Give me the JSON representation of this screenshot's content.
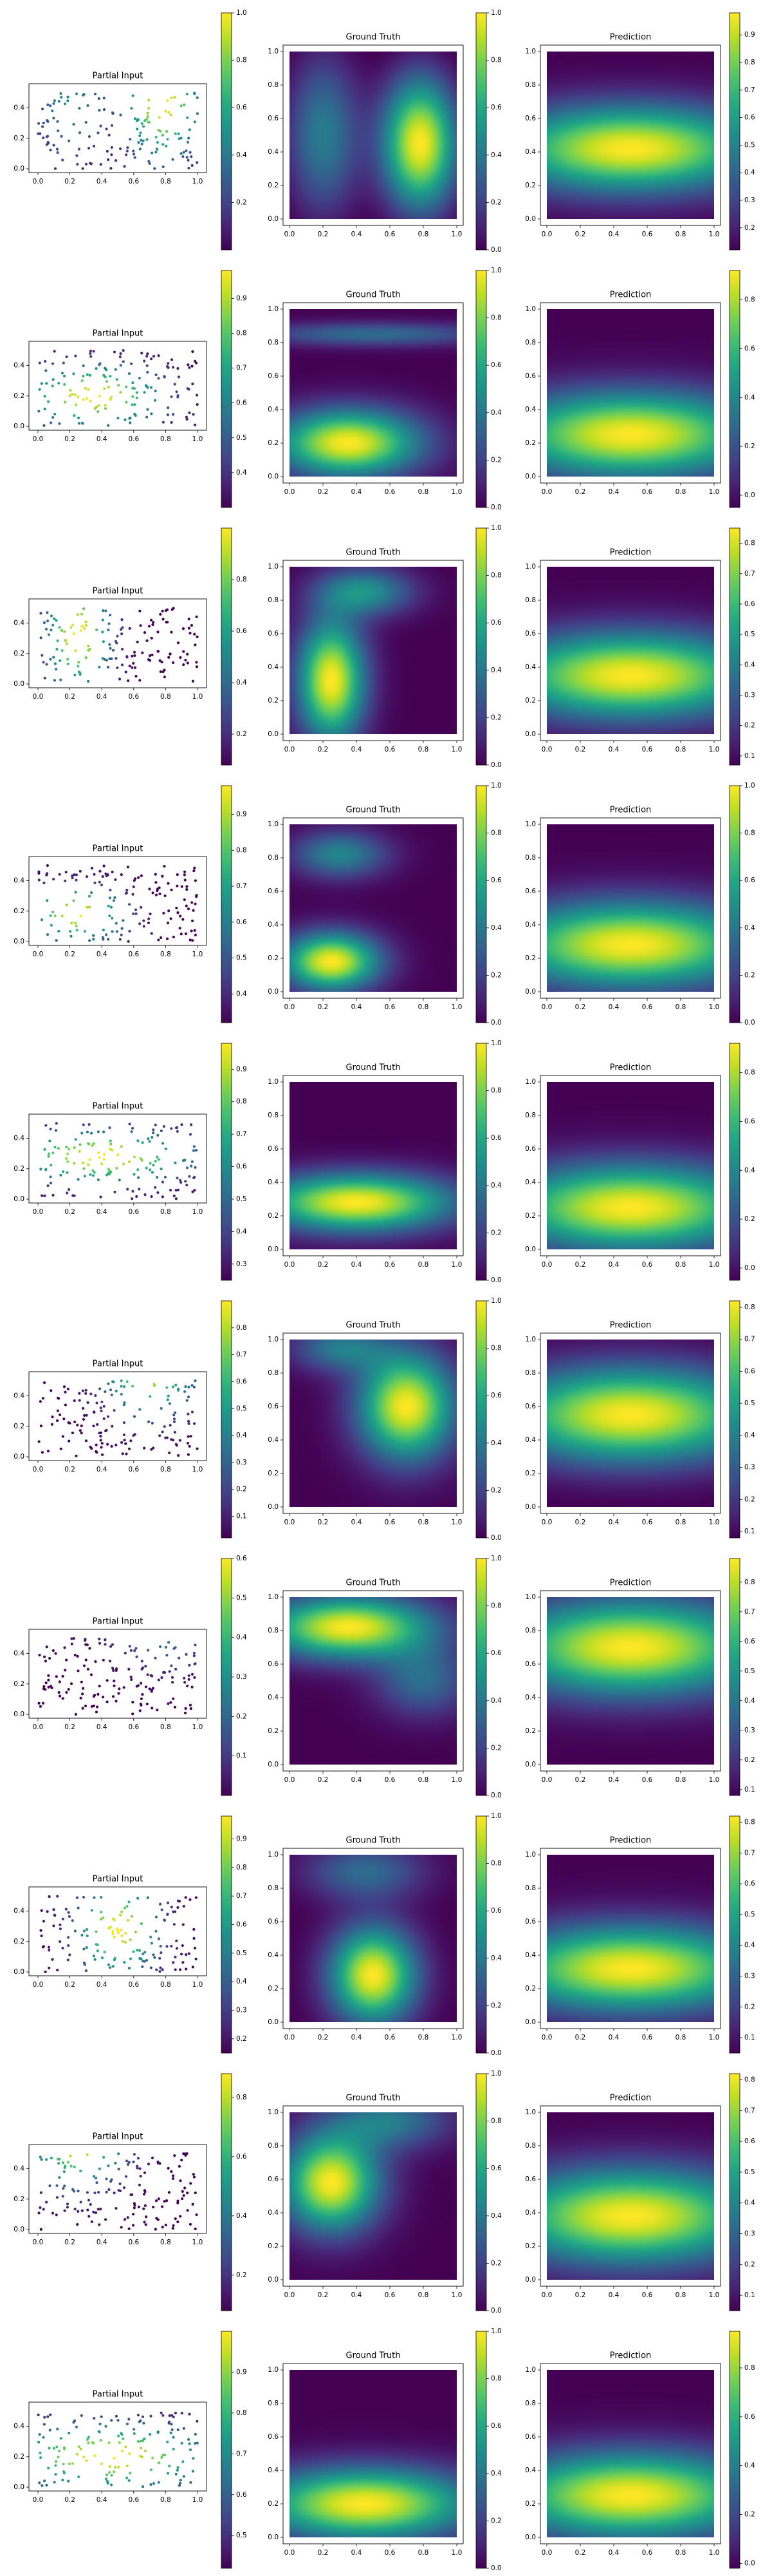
{
  "colormap": "viridis",
  "panel_titles": [
    "Partial Input",
    "Ground Truth",
    "Prediction"
  ],
  "axes": {
    "partial_x_ticks": [
      "0.0",
      "0.2",
      "0.4",
      "0.6",
      "0.8",
      "1.0"
    ],
    "partial_y_ticks": [
      "0.0",
      "0.2",
      "0.4"
    ],
    "square_ticks": [
      "0.0",
      "0.2",
      "0.4",
      "0.6",
      "0.8",
      "1.0"
    ]
  },
  "chart_data": {
    "type": "heatmap",
    "x_range": [
      0,
      1
    ],
    "partial_y_range": [
      0,
      0.5
    ],
    "grid_y_range": [
      0,
      1
    ],
    "rows": [
      {
        "gt_peaks": [
          {
            "x": 0.78,
            "y": 0.45,
            "sx": 0.16,
            "sy": 0.28,
            "a": 1.0
          },
          {
            "x": 0.2,
            "y": 0.5,
            "sx": 0.16,
            "sy": 0.35,
            "a": 0.45
          }
        ],
        "gt_range": [
          0.0,
          1.0
        ],
        "pred_peak": {
          "x": 0.5,
          "y": 0.42,
          "sx": 0.55,
          "sy": 0.18
        },
        "colorbars": {
          "partial": {
            "min": 0.0,
            "max": 1.0,
            "ticks": [
              "0.2",
              "0.4",
              "0.6",
              "0.8",
              "1.0"
            ]
          },
          "gt": {
            "min": 0.0,
            "max": 1.0,
            "ticks": [
              "0.0",
              "0.2",
              "0.4",
              "0.6",
              "0.8",
              "1.0"
            ]
          },
          "pred": {
            "min": 0.12,
            "max": 0.98,
            "ticks": [
              "0.2",
              "0.3",
              "0.4",
              "0.5",
              "0.6",
              "0.7",
              "0.8",
              "0.9"
            ]
          }
        }
      },
      {
        "gt_peaks": [
          {
            "x": 0.35,
            "y": 0.2,
            "sx": 0.3,
            "sy": 0.14,
            "a": 1.0
          },
          {
            "x": 0.5,
            "y": 0.85,
            "sx": 0.5,
            "sy": 0.05,
            "a": 0.35
          }
        ],
        "gt_range": [
          0.0,
          1.0
        ],
        "pred_peak": {
          "x": 0.5,
          "y": 0.25,
          "sx": 0.55,
          "sy": 0.18
        },
        "colorbars": {
          "partial": {
            "min": 0.3,
            "max": 0.98,
            "ticks": [
              "0.4",
              "0.5",
              "0.6",
              "0.7",
              "0.8",
              "0.9"
            ]
          },
          "gt": {
            "min": 0.0,
            "max": 1.0,
            "ticks": [
              "0.0",
              "0.2",
              "0.4",
              "0.6",
              "0.8",
              "1.0"
            ]
          },
          "pred": {
            "min": -0.05,
            "max": 0.92,
            "ticks": [
              "0.0",
              "0.2",
              "0.4",
              "0.6",
              "0.8"
            ]
          }
        }
      },
      {
        "gt_peaks": [
          {
            "x": 0.25,
            "y": 0.32,
            "sx": 0.14,
            "sy": 0.25,
            "a": 1.0
          },
          {
            "x": 0.45,
            "y": 0.85,
            "sx": 0.2,
            "sy": 0.1,
            "a": 0.5
          }
        ],
        "gt_range": [
          0.0,
          1.0
        ],
        "pred_peak": {
          "x": 0.5,
          "y": 0.35,
          "sx": 0.55,
          "sy": 0.18
        },
        "colorbars": {
          "partial": {
            "min": 0.08,
            "max": 1.0,
            "ticks": [
              "0.2",
              "0.4",
              "0.6",
              "0.8"
            ]
          },
          "gt": {
            "min": 0.0,
            "max": 1.0,
            "ticks": [
              "0.0",
              "0.2",
              "0.4",
              "0.6",
              "0.8",
              "1.0"
            ]
          },
          "pred": {
            "min": 0.07,
            "max": 0.85,
            "ticks": [
              "0.1",
              "0.2",
              "0.3",
              "0.4",
              "0.5",
              "0.6",
              "0.7",
              "0.8"
            ]
          }
        }
      },
      {
        "gt_peaks": [
          {
            "x": 0.25,
            "y": 0.18,
            "sx": 0.2,
            "sy": 0.12,
            "a": 1.0
          },
          {
            "x": 0.3,
            "y": 0.82,
            "sx": 0.2,
            "sy": 0.1,
            "a": 0.45
          }
        ],
        "gt_range": [
          0.0,
          1.0
        ],
        "pred_peak": {
          "x": 0.5,
          "y": 0.28,
          "sx": 0.55,
          "sy": 0.18
        },
        "colorbars": {
          "partial": {
            "min": 0.32,
            "max": 0.98,
            "ticks": [
              "0.4",
              "0.5",
              "0.6",
              "0.7",
              "0.8",
              "0.9"
            ]
          },
          "gt": {
            "min": 0.0,
            "max": 1.0,
            "ticks": [
              "0.0",
              "0.2",
              "0.4",
              "0.6",
              "0.8",
              "1.0"
            ]
          },
          "pred": {
            "min": 0.0,
            "max": 1.0,
            "ticks": [
              "0.0",
              "0.2",
              "0.4",
              "0.6",
              "0.8",
              "1.0"
            ]
          }
        }
      },
      {
        "gt_peaks": [
          {
            "x": 0.4,
            "y": 0.28,
            "sx": 0.4,
            "sy": 0.12,
            "a": 1.0
          }
        ],
        "gt_range": [
          0.0,
          1.0
        ],
        "pred_peak": {
          "x": 0.5,
          "y": 0.25,
          "sx": 0.55,
          "sy": 0.18
        },
        "colorbars": {
          "partial": {
            "min": 0.25,
            "max": 0.98,
            "ticks": [
              "0.3",
              "0.4",
              "0.5",
              "0.6",
              "0.7",
              "0.8",
              "0.9"
            ]
          },
          "gt": {
            "min": 0.0,
            "max": 1.0,
            "ticks": [
              "0.0",
              "0.2",
              "0.4",
              "0.6",
              "0.8",
              "1.0"
            ]
          },
          "pred": {
            "min": -0.05,
            "max": 0.92,
            "ticks": [
              "0.0",
              "0.2",
              "0.4",
              "0.6",
              "0.8"
            ]
          }
        }
      },
      {
        "gt_peaks": [
          {
            "x": 0.7,
            "y": 0.6,
            "sx": 0.2,
            "sy": 0.22,
            "a": 1.0
          },
          {
            "x": 0.3,
            "y": 0.95,
            "sx": 0.2,
            "sy": 0.1,
            "a": 0.4
          }
        ],
        "gt_range": [
          0.0,
          1.0
        ],
        "pred_peak": {
          "x": 0.5,
          "y": 0.55,
          "sx": 0.55,
          "sy": 0.2
        },
        "colorbars": {
          "partial": {
            "min": 0.02,
            "max": 0.9,
            "ticks": [
              "0.1",
              "0.2",
              "0.3",
              "0.4",
              "0.5",
              "0.6",
              "0.7",
              "0.8"
            ]
          },
          "gt": {
            "min": 0.0,
            "max": 1.0,
            "ticks": [
              "0.0",
              "0.2",
              "0.4",
              "0.6",
              "0.8",
              "1.0"
            ]
          },
          "pred": {
            "min": 0.08,
            "max": 0.82,
            "ticks": [
              "0.1",
              "0.2",
              "0.3",
              "0.4",
              "0.5",
              "0.6",
              "0.7",
              "0.8"
            ]
          }
        }
      },
      {
        "gt_peaks": [
          {
            "x": 0.35,
            "y": 0.82,
            "sx": 0.35,
            "sy": 0.13,
            "a": 1.0
          },
          {
            "x": 0.8,
            "y": 0.5,
            "sx": 0.2,
            "sy": 0.15,
            "a": 0.35
          }
        ],
        "gt_range": [
          0.0,
          1.0
        ],
        "pred_peak": {
          "x": 0.5,
          "y": 0.7,
          "sx": 0.55,
          "sy": 0.2
        },
        "colorbars": {
          "partial": {
            "min": 0.0,
            "max": 0.6,
            "ticks": [
              "0.1",
              "0.2",
              "0.3",
              "0.4",
              "0.5",
              "0.6"
            ]
          },
          "gt": {
            "min": 0.0,
            "max": 1.0,
            "ticks": [
              "0.0",
              "0.2",
              "0.4",
              "0.6",
              "0.8",
              "1.0"
            ]
          },
          "pred": {
            "min": 0.08,
            "max": 0.88,
            "ticks": [
              "0.1",
              "0.2",
              "0.3",
              "0.4",
              "0.5",
              "0.6",
              "0.7",
              "0.8"
            ]
          }
        }
      },
      {
        "gt_peaks": [
          {
            "x": 0.5,
            "y": 0.28,
            "sx": 0.18,
            "sy": 0.2,
            "a": 1.0
          },
          {
            "x": 0.45,
            "y": 0.9,
            "sx": 0.25,
            "sy": 0.12,
            "a": 0.35
          }
        ],
        "gt_range": [
          0.0,
          1.0
        ],
        "pred_peak": {
          "x": 0.5,
          "y": 0.32,
          "sx": 0.55,
          "sy": 0.18
        },
        "colorbars": {
          "partial": {
            "min": 0.15,
            "max": 0.98,
            "ticks": [
              "0.2",
              "0.3",
              "0.4",
              "0.5",
              "0.6",
              "0.7",
              "0.8",
              "0.9"
            ]
          },
          "gt": {
            "min": 0.0,
            "max": 1.0,
            "ticks": [
              "0.0",
              "0.2",
              "0.4",
              "0.6",
              "0.8",
              "1.0"
            ]
          },
          "pred": {
            "min": 0.05,
            "max": 0.82,
            "ticks": [
              "0.1",
              "0.2",
              "0.3",
              "0.4",
              "0.5",
              "0.6",
              "0.7",
              "0.8"
            ]
          }
        }
      },
      {
        "gt_peaks": [
          {
            "x": 0.25,
            "y": 0.58,
            "sx": 0.2,
            "sy": 0.2,
            "a": 1.0
          },
          {
            "x": 0.6,
            "y": 0.95,
            "sx": 0.25,
            "sy": 0.12,
            "a": 0.4
          }
        ],
        "gt_range": [
          0.0,
          1.0
        ],
        "pred_peak": {
          "x": 0.5,
          "y": 0.38,
          "sx": 0.55,
          "sy": 0.2
        },
        "colorbars": {
          "partial": {
            "min": 0.08,
            "max": 0.88,
            "ticks": [
              "0.2",
              "0.4",
              "0.6",
              "0.8"
            ]
          },
          "gt": {
            "min": 0.0,
            "max": 1.0,
            "ticks": [
              "0.0",
              "0.2",
              "0.4",
              "0.6",
              "0.8",
              "1.0"
            ]
          },
          "pred": {
            "min": 0.05,
            "max": 0.82,
            "ticks": [
              "0.1",
              "0.2",
              "0.3",
              "0.4",
              "0.5",
              "0.6",
              "0.7",
              "0.8"
            ]
          }
        }
      },
      {
        "gt_peaks": [
          {
            "x": 0.45,
            "y": 0.2,
            "sx": 0.45,
            "sy": 0.15,
            "a": 1.0
          }
        ],
        "gt_range": [
          0.0,
          1.0
        ],
        "pred_peak": {
          "x": 0.5,
          "y": 0.25,
          "sx": 0.55,
          "sy": 0.18
        },
        "colorbars": {
          "partial": {
            "min": 0.42,
            "max": 1.0,
            "ticks": [
              "0.5",
              "0.6",
              "0.7",
              "0.8",
              "0.9"
            ]
          },
          "gt": {
            "min": 0.0,
            "max": 1.0,
            "ticks": [
              "0.0",
              "0.2",
              "0.4",
              "0.6",
              "0.8",
              "1.0"
            ]
          },
          "pred": {
            "min": -0.02,
            "max": 0.95,
            "ticks": [
              "0.0",
              "0.2",
              "0.4",
              "0.6",
              "0.8"
            ]
          }
        }
      }
    ]
  }
}
